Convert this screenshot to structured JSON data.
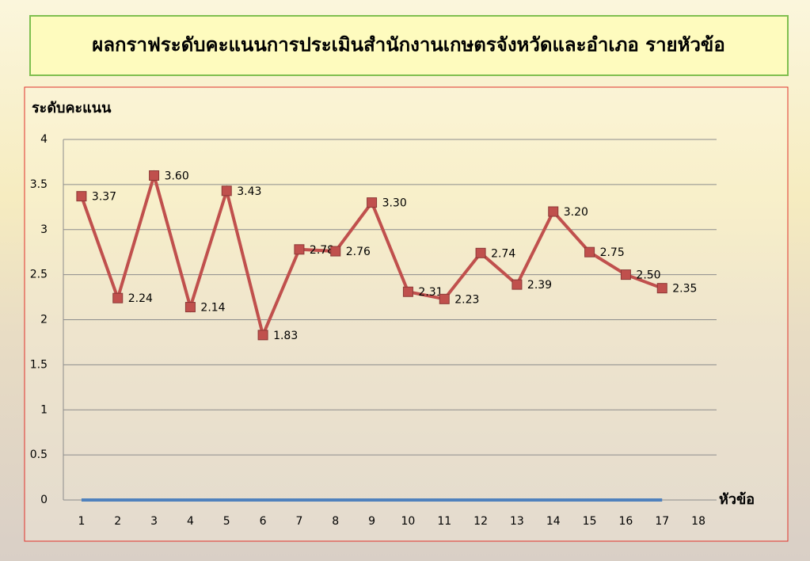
{
  "chart_data": {
    "type": "line",
    "title": "ผลกราฟระดับคะแนนการประเมินสำนักงานเกษตรจังหวัดและอำเภอ รายหัวข้อ",
    "y_label": "ระดับคะแนน",
    "x_label": "หัวข้อ",
    "categories": [
      "1",
      "2",
      "3",
      "4",
      "5",
      "6",
      "7",
      "8",
      "9",
      "10",
      "11",
      "12",
      "13",
      "14",
      "15",
      "16",
      "17",
      "18"
    ],
    "series": [
      {
        "color": "#c0504d",
        "values": [
          3.37,
          2.24,
          3.6,
          2.14,
          3.43,
          1.83,
          2.78,
          2.76,
          3.3,
          2.31,
          2.23,
          2.74,
          2.39,
          3.2,
          2.75,
          2.5,
          2.35,
          null
        ],
        "value_labels": [
          "3.37",
          "2.24",
          "3.60",
          "2.14",
          "3.43",
          "1.83",
          "2.78",
          "2.76",
          "3.30",
          "2.31",
          "2.23",
          "2.74",
          "2.39",
          "3.20",
          "2.75",
          "2.50",
          "2.35",
          null
        ]
      },
      {
        "color": "#4f81bd",
        "values": [
          0,
          0,
          0,
          0,
          0,
          0,
          0,
          0,
          0,
          0,
          0,
          0,
          0,
          0,
          0,
          0,
          0,
          null
        ]
      }
    ],
    "ylim": [
      0,
      4
    ],
    "yticks": [
      0,
      0.5,
      1,
      1.5,
      2,
      2.5,
      3,
      3.5,
      4
    ],
    "grid": true
  }
}
